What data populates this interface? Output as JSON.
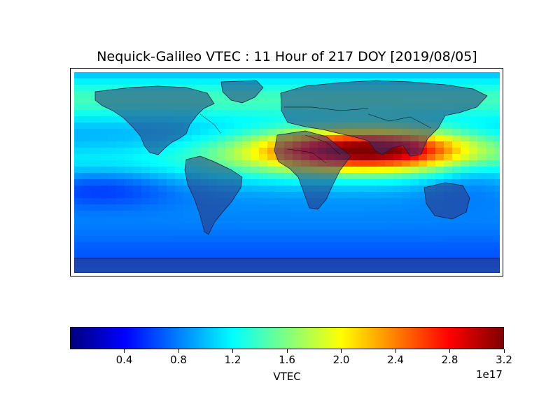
{
  "chart_data": {
    "type": "heatmap",
    "title": "Nequick-Galileo VTEC : 11 Hour of 217 DOY [2019/08/05]",
    "map": "world map (equirectangular projection) with coastlines and country borders",
    "colormap": "jet",
    "colorbar": {
      "label": "VTEC",
      "multiplier": "1e17",
      "range": [
        0.0,
        3.2
      ],
      "orientation": "horizontal",
      "ticks": [
        {
          "value": 0.4,
          "label": "0.4"
        },
        {
          "value": 0.8,
          "label": "0.8"
        },
        {
          "value": 1.2,
          "label": "1.2"
        },
        {
          "value": 1.6,
          "label": "1.6"
        },
        {
          "value": 2.0,
          "label": "2.0"
        },
        {
          "value": 2.4,
          "label": "2.4"
        },
        {
          "value": 2.8,
          "label": "2.8"
        },
        {
          "value": 3.2,
          "label": "3.2"
        }
      ]
    },
    "grid": false
  }
}
